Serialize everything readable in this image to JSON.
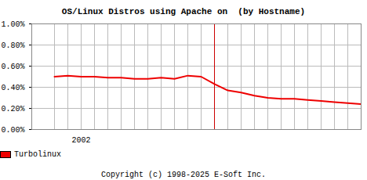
{
  "chart_data": {
    "type": "line",
    "title": "OS/Linux Distros using Apache on  (by Hostname)",
    "footer": "Copyright (c) 1998-2025 E-Soft Inc.",
    "categories": [
      null,
      null,
      "2002",
      null,
      null,
      null,
      null,
      null,
      null,
      null,
      null,
      null,
      null,
      null,
      null,
      null,
      null,
      null,
      null,
      null,
      null,
      null,
      null,
      null
    ],
    "series": [
      {
        "name": "Turbolinux",
        "color": "#ee0000",
        "values": [
          0.5,
          0.51,
          0.5,
          0.5,
          0.49,
          0.49,
          0.48,
          0.48,
          0.49,
          0.48,
          0.51,
          0.5,
          0.43,
          0.37,
          0.35,
          0.32,
          0.3,
          0.29,
          0.29,
          0.28,
          0.27,
          0.26,
          0.25,
          0.24
        ]
      }
    ],
    "reference_line": {
      "index": 12,
      "color": "#cc0000"
    },
    "ylim": [
      0,
      1
    ],
    "yticks": [
      {
        "value": 0,
        "label": "0.00%"
      },
      {
        "value": 0.2,
        "label": "0.20%"
      },
      {
        "value": 0.4,
        "label": "0.40%"
      },
      {
        "value": 0.6,
        "label": "0.60%"
      },
      {
        "value": 0.8,
        "label": "0.80%"
      },
      {
        "value": 1,
        "label": "1.00%"
      }
    ],
    "grid": true,
    "legend": "bottom-left"
  }
}
